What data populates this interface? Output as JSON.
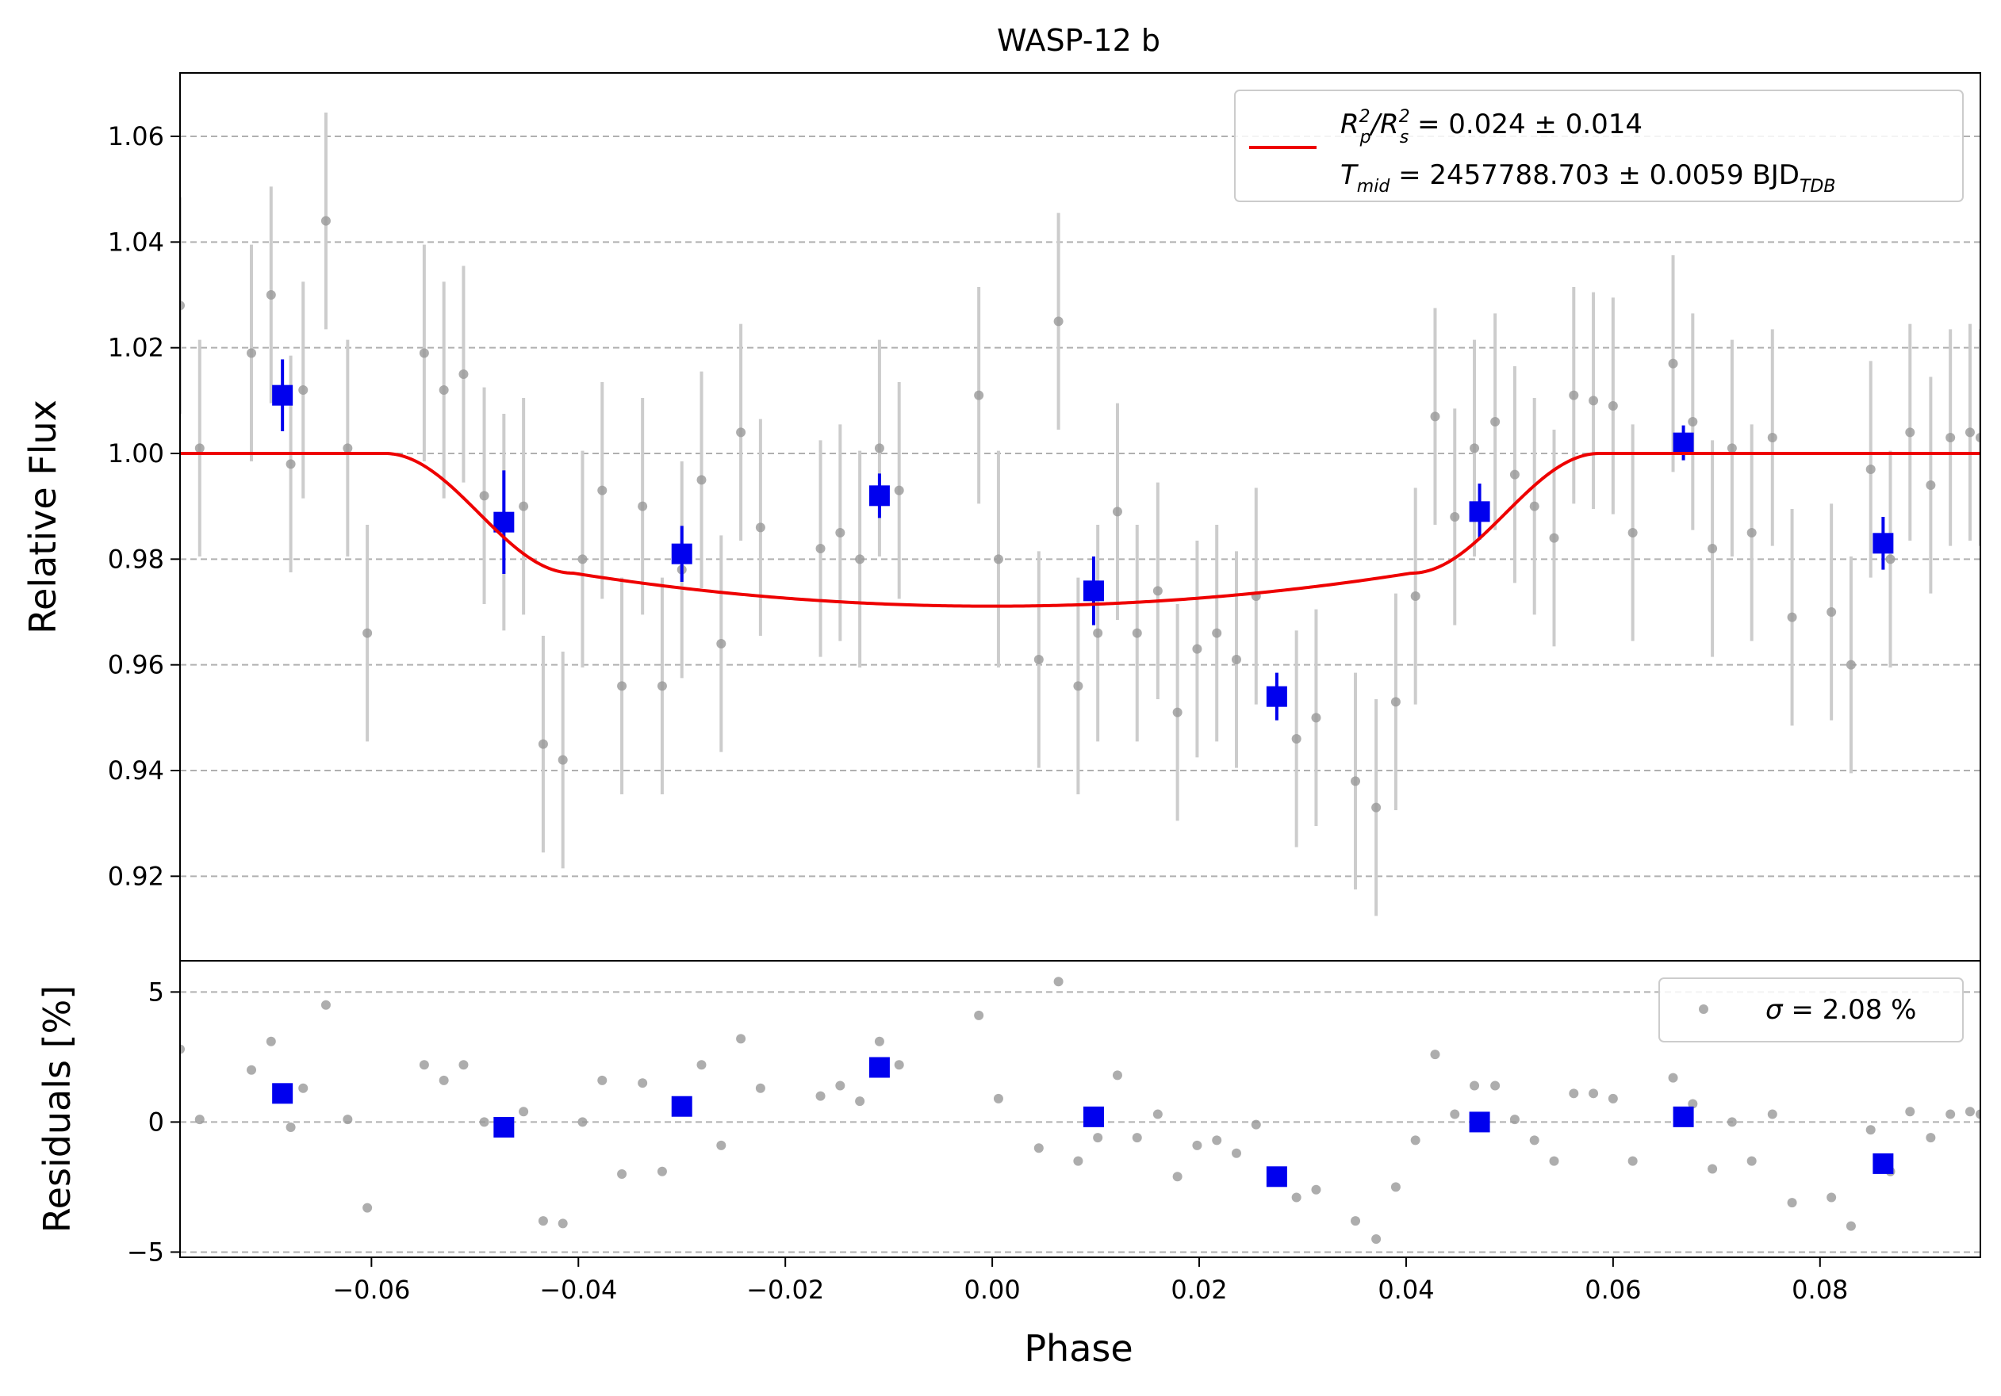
{
  "chart_data": {
    "type": "scatter",
    "title": "WASP-12 b",
    "xlabel": "Phase",
    "xlim": [
      -0.0785,
      0.0955
    ],
    "x_ticks": [
      -0.06,
      -0.04,
      -0.02,
      0.0,
      0.02,
      0.04,
      0.06,
      0.08
    ],
    "x_tick_labels": [
      "−0.06",
      "−0.04",
      "−0.02",
      "0.00",
      "0.02",
      "0.04",
      "0.06",
      "0.08"
    ],
    "top_panel": {
      "ylabel": "Relative Flux",
      "ylim": [
        0.904,
        1.072
      ],
      "y_ticks": [
        0.92,
        0.94,
        0.96,
        0.98,
        1.0,
        1.02,
        1.04,
        1.06
      ],
      "y_tick_labels": [
        "0.92",
        "0.94",
        "0.96",
        "0.98",
        "1.00",
        "1.02",
        "1.04",
        "1.06"
      ],
      "grid": true,
      "legend_position": "top-right",
      "legend": {
        "line1_prefix": "R",
        "line1_p_sub": "p",
        "line1_p_sup": "2",
        "line1_slash": "/R",
        "line1_s_sub": "s",
        "line1_s_sup": "2",
        "line1_value": " = 0.024 ± 0.014",
        "line2_prefix": "T",
        "line2_sub": "mid",
        "line2_value": " = 2457788.703 ± 0.0059 BJD",
        "line2_tail_sub": "TDB"
      }
    },
    "bottom_panel": {
      "ylabel": "Residuals [%]",
      "ylim": [
        -5.2,
        6.2
      ],
      "y_ticks": [
        -5,
        0,
        5
      ],
      "y_tick_labels": [
        "−5",
        "0",
        "5"
      ],
      "grid": true,
      "legend_position": "top-right",
      "legend_sigma_symbol": "σ",
      "legend_value": " = 2.08 %"
    },
    "colors": {
      "raw": "#999999",
      "raw_err": "#cccccc",
      "binned": "#0000ee",
      "model": "#ee0000",
      "grid": "#b0b0b0"
    },
    "series": [
      {
        "kind": "raw",
        "flux_err": 0.0205,
        "x": [
          -0.0785,
          -0.0766,
          -0.0716,
          -0.0697,
          -0.0678,
          -0.0666,
          -0.0644,
          -0.0623,
          -0.0604,
          -0.0549,
          -0.053,
          -0.0511,
          -0.0491,
          -0.0472,
          -0.0453,
          -0.0434,
          -0.0415,
          -0.0396,
          -0.0377,
          -0.0358,
          -0.0338,
          -0.0319,
          -0.03,
          -0.0281,
          -0.0262,
          -0.0243,
          -0.0224,
          -0.0166,
          -0.0147,
          -0.0128,
          -0.0109,
          -0.009,
          -0.0013,
          0.0006,
          0.0045,
          0.0064,
          0.0083,
          0.0102,
          0.0121,
          0.014,
          0.016,
          0.0179,
          0.0198,
          0.0217,
          0.0236,
          0.0255,
          0.0294,
          0.0313,
          0.0351,
          0.0371,
          0.039,
          0.0409,
          0.0428,
          0.0447,
          0.0466,
          0.0486,
          0.0505,
          0.0524,
          0.0543,
          0.0562,
          0.0581,
          0.06,
          0.0619,
          0.0658,
          0.0677,
          0.0696,
          0.0715,
          0.0734,
          0.0754,
          0.0773,
          0.0811,
          0.083,
          0.0849,
          0.0868,
          0.0887,
          0.0907,
          0.0926,
          0.0945,
          0.0955
        ],
        "y": [
          1.028,
          1.001,
          1.019,
          1.03,
          0.998,
          1.012,
          1.044,
          1.001,
          0.966,
          1.019,
          1.012,
          1.015,
          0.992,
          0.987,
          0.99,
          0.945,
          0.942,
          0.98,
          0.993,
          0.956,
          0.99,
          0.956,
          0.978,
          0.995,
          0.964,
          1.004,
          0.986,
          0.982,
          0.985,
          0.98,
          1.001,
          0.993,
          1.011,
          0.98,
          0.961,
          1.025,
          0.956,
          0.966,
          0.989,
          0.966,
          0.974,
          0.951,
          0.963,
          0.966,
          0.961,
          0.973,
          0.946,
          0.95,
          0.938,
          0.933,
          0.953,
          0.973,
          1.007,
          0.988,
          1.001,
          1.006,
          0.996,
          0.99,
          0.984,
          1.011,
          1.01,
          1.009,
          0.985,
          1.017,
          1.006,
          0.982,
          1.001,
          0.985,
          1.003,
          0.969,
          0.97,
          0.96,
          0.997,
          0.98,
          1.004,
          0.994,
          1.003,
          1.004,
          1.003
        ]
      },
      {
        "kind": "binned",
        "x": [
          -0.0686,
          -0.0472,
          -0.03,
          -0.0109,
          0.0098,
          0.0275,
          0.0471,
          0.0668,
          0.0861
        ],
        "y": [
          1.011,
          0.987,
          0.981,
          0.992,
          0.974,
          0.954,
          0.989,
          1.002,
          0.983
        ],
        "err": [
          0.0068,
          0.0098,
          0.0053,
          0.0042,
          0.0065,
          0.0045,
          0.0053,
          0.0033,
          0.005
        ]
      }
    ],
    "residuals": {
      "raw": [
        2.8,
        0.1,
        2.0,
        3.1,
        -0.2,
        1.3,
        4.5,
        0.1,
        -3.3,
        2.2,
        1.6,
        2.2,
        0.0,
        -0.1,
        0.4,
        -3.8,
        -3.9,
        0.0,
        1.6,
        -2.0,
        1.5,
        -1.9,
        0.6,
        2.2,
        -0.9,
        3.2,
        1.3,
        1.0,
        1.4,
        0.8,
        3.1,
        2.2,
        4.1,
        0.9,
        -1.0,
        5.4,
        -1.5,
        -0.6,
        1.8,
        -0.6,
        0.3,
        -2.1,
        -0.9,
        -0.7,
        -1.2,
        -0.1,
        -2.9,
        -2.6,
        -3.8,
        -4.5,
        -2.5,
        -0.7,
        2.6,
        0.3,
        1.4,
        1.4,
        0.1,
        -0.7,
        -1.5,
        1.1,
        1.1,
        0.9,
        -1.5,
        1.7,
        0.7,
        -1.8,
        0.0,
        -1.5,
        0.3,
        -3.1,
        -2.9,
        -4.0,
        -0.3,
        -1.9,
        0.4,
        -0.6,
        0.3,
        0.4,
        0.3
      ],
      "binned": [
        1.1,
        -0.2,
        0.6,
        2.1,
        0.2,
        -2.1,
        0.0,
        0.2,
        -1.6
      ]
    },
    "model": {
      "name": "transit model",
      "baseline": 1.0,
      "t14_half": 0.0587,
      "t23_half": 0.0405,
      "depth_center": 0.0289,
      "limb_curvature": 0.00625
    }
  }
}
